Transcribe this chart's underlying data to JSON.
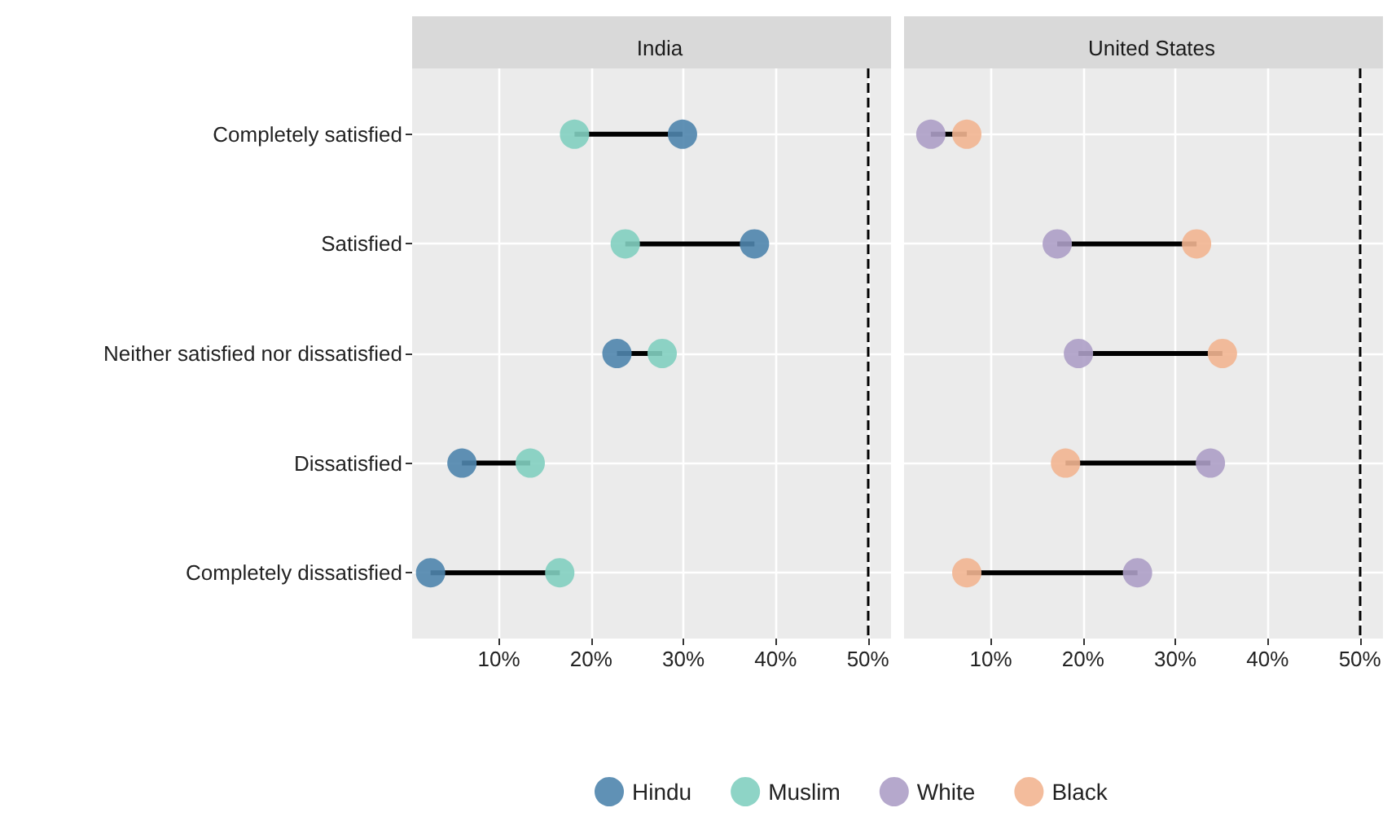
{
  "chart_data": [
    {
      "type": "scatter",
      "title": "India",
      "orientation": "horizontal",
      "categories": [
        "Completely satisfied",
        "Satisfied",
        "Neither satisfied nor dissatisfied",
        "Dissatisfied",
        "Completely dissatisfied"
      ],
      "series": [
        {
          "name": "Hindu",
          "color": "#4f85ad",
          "values": [
            29.9,
            37.7,
            22.8,
            6.0,
            2.6
          ]
        },
        {
          "name": "Muslim",
          "color": "#82cfc0",
          "values": [
            18.2,
            23.7,
            27.7,
            13.4,
            16.6
          ]
        }
      ],
      "xlim": [
        0.6,
        52.5
      ],
      "xticks": [
        {
          "value": 10,
          "label": "10%"
        },
        {
          "value": 20,
          "label": "20%"
        },
        {
          "value": 30,
          "label": "30%"
        },
        {
          "value": 40,
          "label": "40%"
        },
        {
          "value": 50,
          "label": "50%"
        }
      ],
      "ref_lines": [
        {
          "axis": "x",
          "value": 50,
          "color": "#000000",
          "line_style": "dashed"
        }
      ],
      "grid": true,
      "legend": "bottom",
      "marker": "circle"
    },
    {
      "type": "scatter",
      "title": "United States",
      "orientation": "horizontal",
      "categories": [
        "Completely satisfied",
        "Satisfied",
        "Neither satisfied nor dissatisfied",
        "Dissatisfied",
        "Completely dissatisfied"
      ],
      "series": [
        {
          "name": "White",
          "color": "#ad9ec7",
          "values": [
            3.5,
            17.2,
            19.5,
            33.8,
            25.9
          ]
        },
        {
          "name": "Black",
          "color": "#f2b591",
          "values": [
            7.4,
            32.3,
            35.1,
            18.1,
            7.4
          ]
        }
      ],
      "xlim": [
        0.6,
        52.5
      ],
      "xticks": [
        {
          "value": 10,
          "label": "10%"
        },
        {
          "value": 20,
          "label": "20%"
        },
        {
          "value": 30,
          "label": "30%"
        },
        {
          "value": 40,
          "label": "40%"
        },
        {
          "value": 50,
          "label": "50%"
        }
      ],
      "ref_lines": [
        {
          "axis": "x",
          "value": 50,
          "color": "#000000",
          "line_style": "dashed"
        }
      ],
      "grid": true,
      "legend": "bottom",
      "marker": "circle",
      "tick_labels": "x"
    }
  ]
}
